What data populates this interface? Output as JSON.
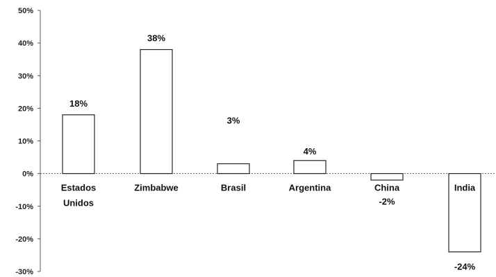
{
  "chart_data": {
    "type": "bar",
    "title": "",
    "xlabel": "",
    "ylabel": "",
    "categories": [
      "Estados Unidos",
      "Zimbabwe",
      "Brasil",
      "Argentina",
      "China",
      "India"
    ],
    "category_lines": [
      [
        "Estados",
        "Unidos"
      ],
      [
        "Zimbabwe"
      ],
      [
        "Brasil"
      ],
      [
        "Argentina"
      ],
      [
        "China"
      ],
      [
        "India"
      ]
    ],
    "values": [
      18,
      38,
      3,
      4,
      -2,
      -24
    ],
    "data_labels": [
      "18%",
      "38%",
      "3%",
      "4%",
      "-2%",
      "-24%"
    ],
    "y_ticks": [
      50,
      40,
      30,
      20,
      10,
      0,
      -10,
      -20,
      -30
    ],
    "y_tick_labels": [
      "50%",
      "40%",
      "30%",
      "20%",
      "10%",
      "0%",
      "-10%",
      "-20%",
      "-30%"
    ],
    "ylim": [
      -30,
      50
    ],
    "grid": false,
    "legend": "none",
    "colors": {
      "bar_fill": "#ffffff",
      "bar_stroke": "#222222",
      "axis": "#555555"
    }
  }
}
